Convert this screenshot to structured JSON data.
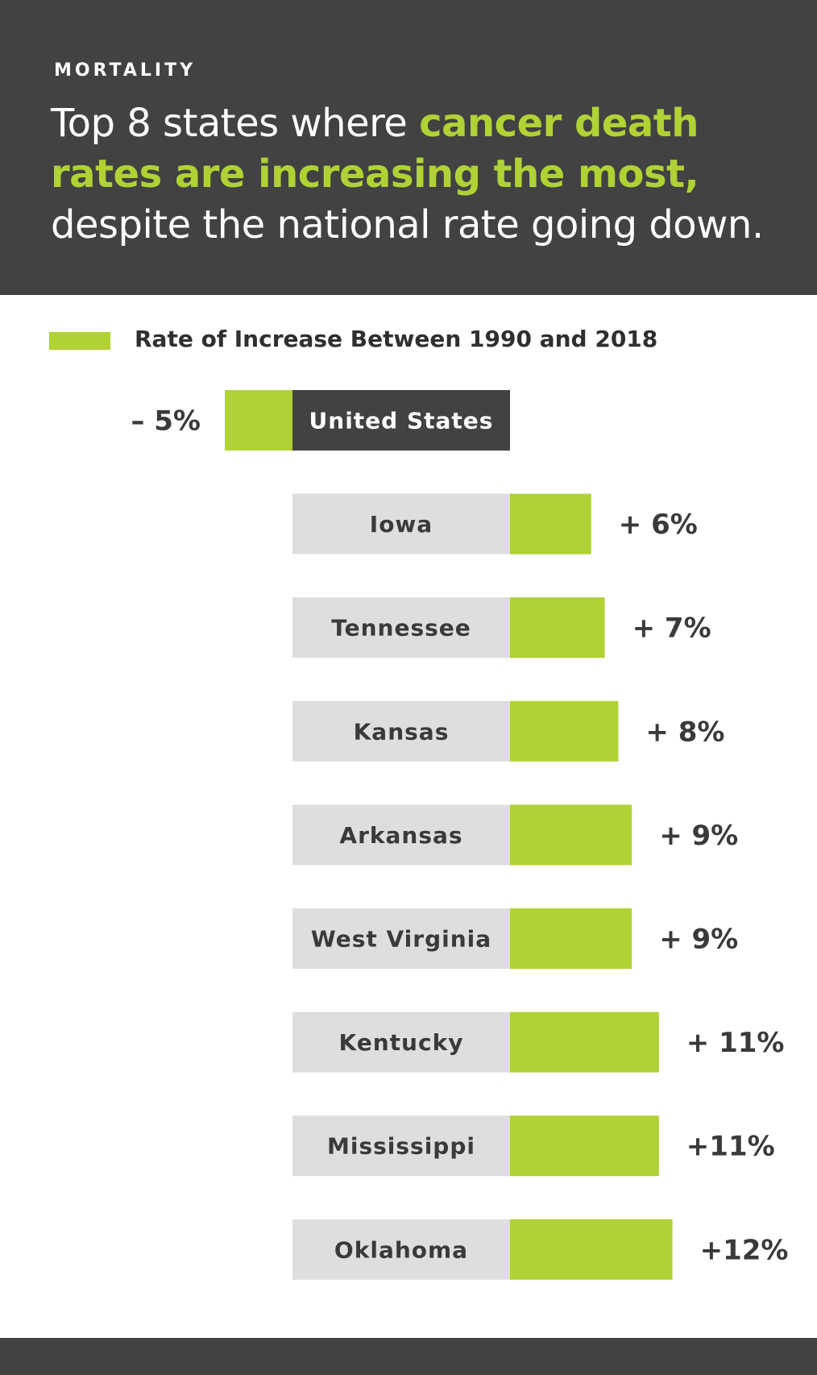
{
  "colors": {
    "accent": "#b0d235",
    "dark": "#424242",
    "label_box": "#dedede",
    "text_dark": "#3a3a3a",
    "white": "#ffffff"
  },
  "header": {
    "kicker": "MORTALITY",
    "headline_pre": "Top 8 states where ",
    "headline_highlight": "cancer death rates are increasing the most,",
    "headline_post": " despite the national rate going down."
  },
  "legend": {
    "label": "Rate of Increase Between 1990 and 2018"
  },
  "chart_data": {
    "type": "bar",
    "orientation": "horizontal",
    "title": "Top 8 states where cancer death rates are increasing the most, despite the national rate going down.",
    "legend": [
      "Rate of Increase Between 1990 and 2018"
    ],
    "unit": "%",
    "categories": [
      "United States",
      "Iowa",
      "Tennessee",
      "Kansas",
      "Arkansas",
      "West Virginia",
      "Kentucky",
      "Mississippi",
      "Oklahoma"
    ],
    "values": [
      -5,
      6,
      7,
      8,
      9,
      9,
      11,
      11,
      12
    ],
    "value_labels": [
      "– 5%",
      "+ 6%",
      "+ 7%",
      "+ 8%",
      "+ 9%",
      "+ 9%",
      "+ 11%",
      "+11%",
      "+12%"
    ],
    "highlight_category": "United States"
  }
}
